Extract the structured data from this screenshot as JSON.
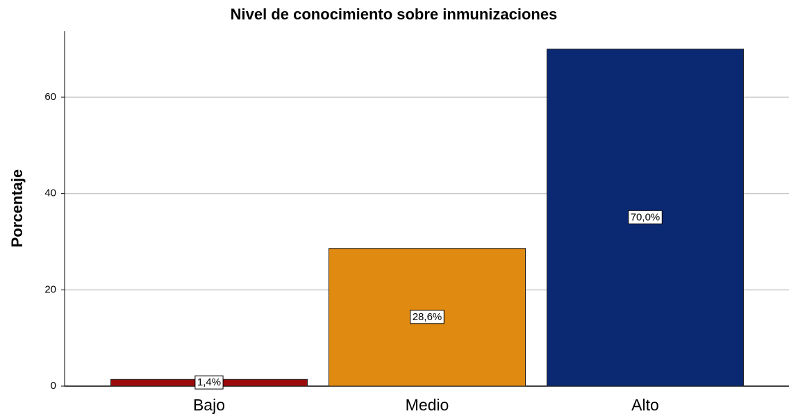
{
  "chart_data": {
    "type": "bar",
    "title": "Nivel de conocimiento sobre inmunizaciones",
    "y_label": "Porcentaje",
    "categories": [
      "Bajo",
      "Medio",
      "Alto"
    ],
    "values": [
      1.4,
      28.6,
      70.0
    ],
    "value_labels": [
      "1,4%",
      "28,6%",
      "70,0%"
    ],
    "colors": [
      "#9c0b0b",
      "#e08a12",
      "#0b2872"
    ],
    "ylim": [
      0,
      73.7
    ],
    "yticks": [
      0,
      20,
      40,
      60
    ],
    "grid": true
  }
}
